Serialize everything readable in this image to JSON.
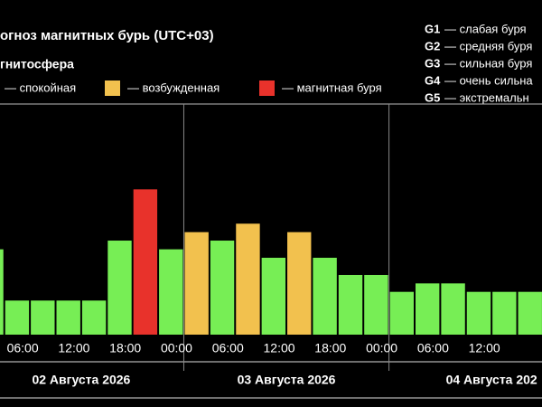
{
  "chart_data": {
    "type": "bar",
    "title": "огноз магнитных бурь (UTC+03)",
    "subtitle": "гнитосфера",
    "legend": [
      {
        "name": "— спокойная",
        "color": "#77ee55"
      },
      {
        "name": "— возбужденная",
        "color": "#f2c14e"
      },
      {
        "name": "— магнитная буря",
        "color": "#e8322b"
      }
    ],
    "storm_levels": [
      {
        "code": "G1",
        "label": "— слабая буря"
      },
      {
        "code": "G2",
        "label": "— средняя буря"
      },
      {
        "code": "G3",
        "label": "— сильная буря"
      },
      {
        "code": "G4",
        "label": "— очень сильна"
      },
      {
        "code": "G5",
        "label": "— экстремальн"
      }
    ],
    "x": [
      0,
      3,
      6,
      9,
      12,
      15,
      18,
      21,
      24,
      27,
      30,
      33,
      36,
      39,
      42,
      45,
      48,
      51,
      54,
      57,
      60,
      63
    ],
    "values": [
      3.33,
      1.33,
      1.33,
      1.33,
      1.33,
      3.67,
      5.67,
      3.33,
      4,
      3.67,
      4.33,
      3,
      4,
      3,
      2.33,
      2.33,
      1.67,
      2,
      2,
      1.67,
      1.67,
      1.67
    ],
    "colors": [
      "#77ee55",
      "#77ee55",
      "#77ee55",
      "#77ee55",
      "#77ee55",
      "#77ee55",
      "#e8322b",
      "#77ee55",
      "#f2c14e",
      "#77ee55",
      "#f2c14e",
      "#77ee55",
      "#f2c14e",
      "#77ee55",
      "#77ee55",
      "#77ee55",
      "#77ee55",
      "#77ee55",
      "#77ee55",
      "#77ee55",
      "#77ee55",
      "#77ee55"
    ],
    "xlim": [
      2.5,
      65.9
    ],
    "ylim": [
      0,
      9
    ],
    "xticks": [
      {
        "value": 6,
        "label": "06:00"
      },
      {
        "value": 12,
        "label": "12:00"
      },
      {
        "value": 18,
        "label": "18:00"
      },
      {
        "value": 24,
        "label": "00:00"
      },
      {
        "value": 30,
        "label": "06:00"
      },
      {
        "value": 36,
        "label": "12:00"
      },
      {
        "value": 42,
        "label": "18:00"
      },
      {
        "value": 48,
        "label": "00:00"
      },
      {
        "value": 54,
        "label": "06:00"
      },
      {
        "value": 60,
        "label": "12:00"
      }
    ],
    "days": [
      "02 Августа 2026",
      "03 Августа 2026",
      "04 Августа 202"
    ]
  }
}
